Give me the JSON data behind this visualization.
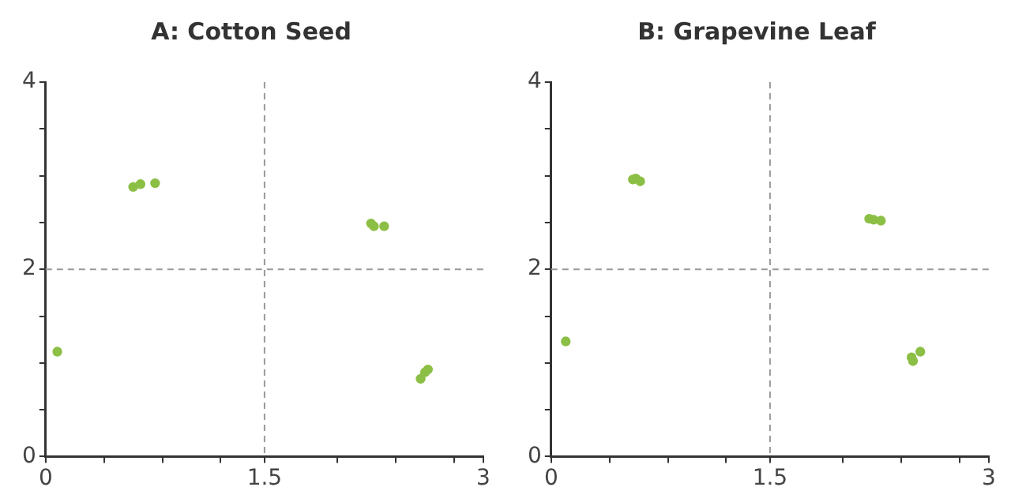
{
  "chart_data": [
    {
      "type": "scatter",
      "title": "A: Cotton Seed",
      "marker": "circle",
      "legend": false,
      "xlim": [
        0,
        3
      ],
      "ylim": [
        0,
        4
      ],
      "xticks": [
        0,
        {
          "value": 0.4,
          "label": null
        },
        {
          "value": 0.8,
          "label": null
        },
        {
          "value": 1.2,
          "label": null
        },
        1.5,
        {
          "value": 2,
          "label": null
        },
        {
          "value": 2.4,
          "label": null
        },
        {
          "value": 2.8,
          "label": null
        },
        3
      ],
      "yticks": [
        0,
        {
          "value": 0.5,
          "label": null
        },
        {
          "value": 1,
          "label": null
        },
        {
          "value": 1.5,
          "label": null
        },
        2,
        {
          "value": 2.5,
          "label": null
        },
        {
          "value": 3,
          "label": null
        },
        {
          "value": 3.5,
          "label": null
        },
        4
      ],
      "ref_lines": [
        {
          "axis": "x",
          "value": 1.5,
          "color": "#999999",
          "line_style": "dashed"
        },
        {
          "axis": "y",
          "value": 2,
          "color": "#999999",
          "line_style": "dashed"
        }
      ],
      "series": [
        {
          "color": "#8cbf45",
          "x": [
            0.08,
            0.6,
            0.65,
            0.75,
            2.23,
            2.25,
            2.32,
            2.57,
            2.6,
            2.62
          ],
          "values": [
            1.12,
            2.88,
            2.91,
            2.92,
            2.49,
            2.46,
            2.46,
            0.83,
            0.9,
            0.93
          ]
        }
      ]
    },
    {
      "type": "scatter",
      "title": "B: Grapevine Leaf",
      "marker": "circle",
      "legend": false,
      "xlim": [
        0,
        3
      ],
      "ylim": [
        0,
        4
      ],
      "xticks": [
        0,
        {
          "value": 0.4,
          "label": null
        },
        {
          "value": 0.8,
          "label": null
        },
        {
          "value": 1.2,
          "label": null
        },
        1.5,
        {
          "value": 2,
          "label": null
        },
        {
          "value": 2.4,
          "label": null
        },
        {
          "value": 2.8,
          "label": null
        },
        3
      ],
      "yticks": [
        0,
        {
          "value": 0.5,
          "label": null
        },
        {
          "value": 1,
          "label": null
        },
        {
          "value": 1.5,
          "label": null
        },
        2,
        {
          "value": 2.5,
          "label": null
        },
        {
          "value": 3,
          "label": null
        },
        {
          "value": 3.5,
          "label": null
        },
        4
      ],
      "ref_lines": [
        {
          "axis": "x",
          "value": 1.5,
          "color": "#999999",
          "line_style": "dashed"
        },
        {
          "axis": "y",
          "value": 2,
          "color": "#999999",
          "line_style": "dashed"
        }
      ],
      "series": [
        {
          "color": "#8cbf45",
          "x": [
            0.1,
            0.56,
            0.58,
            0.61,
            2.18,
            2.21,
            2.26,
            2.47,
            2.48,
            2.53
          ],
          "values": [
            1.23,
            2.96,
            2.97,
            2.94,
            2.54,
            2.53,
            2.52,
            1.06,
            1.02,
            1.12
          ]
        }
      ]
    }
  ]
}
